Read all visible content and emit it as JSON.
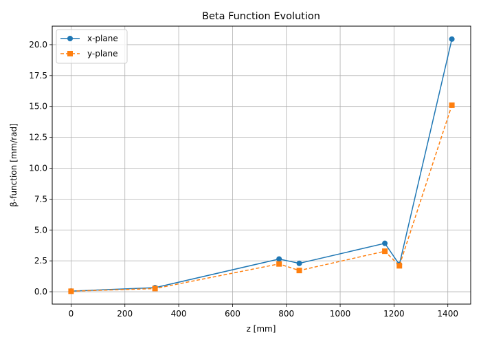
{
  "chart_data": {
    "type": "line",
    "title": "Beta Function Evolution",
    "xlabel": "z [mm]",
    "ylabel": "β-function [mm/rad]",
    "xlim": [
      -70,
      1485
    ],
    "ylim": [
      -1.0,
      21.5
    ],
    "xticks": [
      0,
      200,
      400,
      600,
      800,
      1000,
      1200,
      1400
    ],
    "yticks": [
      0.0,
      2.5,
      5.0,
      7.5,
      10.0,
      12.5,
      15.0,
      17.5,
      20.0
    ],
    "grid": true,
    "legend_position": "top-left",
    "series": [
      {
        "name": "x-plane",
        "color": "#1f77b4",
        "marker": "circle",
        "linestyle": "solid",
        "x": [
          0,
          312,
          773,
          848,
          1166,
          1220,
          1415
        ],
        "y": [
          0.05,
          0.33,
          2.65,
          2.3,
          3.92,
          2.2,
          20.45
        ]
      },
      {
        "name": "y-plane",
        "color": "#ff7f0e",
        "marker": "square",
        "linestyle": "dashed",
        "x": [
          0,
          312,
          773,
          848,
          1166,
          1220,
          1415
        ],
        "y": [
          0.04,
          0.26,
          2.25,
          1.72,
          3.28,
          2.1,
          15.1
        ]
      }
    ]
  }
}
